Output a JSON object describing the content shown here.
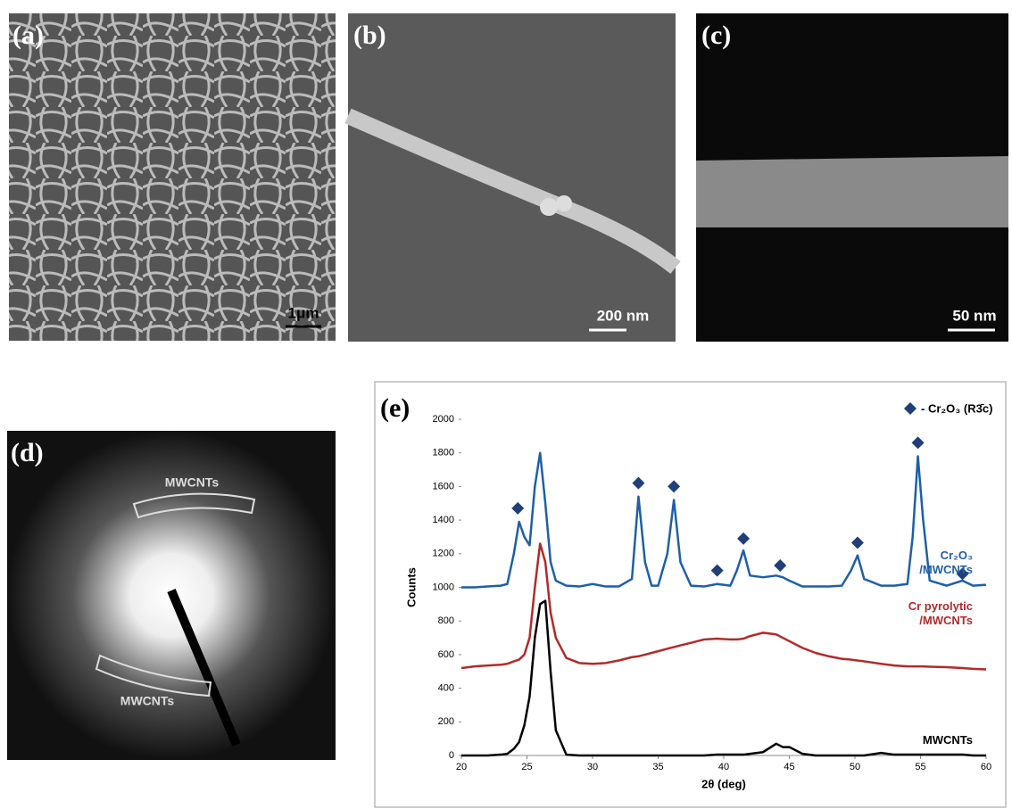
{
  "panels": [
    {
      "label": "(a)",
      "scale": "1μm"
    },
    {
      "label": "(b)",
      "scale": "200 nm"
    },
    {
      "label": "(c)",
      "scale": "50 nm"
    },
    {
      "label": "(d)",
      "rings": [
        "MWCNTs",
        "MWCNTs"
      ]
    }
  ],
  "chart_data": {
    "type": "line",
    "panel_label": "(e)",
    "x_label": "2θ (deg)",
    "y_label": "Counts",
    "x": [
      20,
      21,
      22,
      23,
      23.5,
      24,
      24.4,
      24.8,
      25.2,
      25.6,
      26,
      26.4,
      26.8,
      27.2,
      28,
      29,
      30,
      31,
      32,
      33,
      33.5,
      34,
      34.5,
      35,
      35.7,
      36.2,
      36.7,
      37.5,
      38.5,
      39.5,
      40.5,
      41,
      41.5,
      42,
      43,
      44,
      44.5,
      45,
      46,
      47,
      48,
      49,
      49.7,
      50.2,
      50.7,
      52,
      53,
      54,
      54.4,
      54.8,
      55.2,
      55.7,
      57,
      58.2,
      59,
      60
    ],
    "series": [
      {
        "name": "Cr₂O₃ /MWCNTs",
        "color": "#1f5fa8",
        "values": [
          1000,
          1000,
          1005,
          1010,
          1020,
          1200,
          1390,
          1300,
          1250,
          1600,
          1800,
          1500,
          1150,
          1040,
          1010,
          1005,
          1020,
          1005,
          1005,
          1050,
          1540,
          1150,
          1010,
          1010,
          1200,
          1520,
          1150,
          1010,
          1005,
          1020,
          1010,
          1100,
          1220,
          1070,
          1060,
          1070,
          1060,
          1040,
          1005,
          1005,
          1005,
          1010,
          1100,
          1190,
          1050,
          1010,
          1010,
          1020,
          1300,
          1780,
          1400,
          1040,
          1010,
          1040,
          1010,
          1015
        ]
      },
      {
        "name": "Cr pyrolytic /MWCNTs",
        "color": "#b22a2a",
        "values": [
          520,
          530,
          535,
          540,
          545,
          560,
          570,
          600,
          700,
          1000,
          1260,
          1150,
          850,
          700,
          580,
          550,
          545,
          550,
          565,
          585,
          590,
          600,
          610,
          620,
          635,
          645,
          655,
          670,
          690,
          695,
          690,
          690,
          695,
          710,
          730,
          720,
          700,
          680,
          640,
          610,
          590,
          575,
          570,
          565,
          560,
          545,
          535,
          530,
          530,
          530,
          530,
          528,
          525,
          520,
          515,
          512
        ]
      },
      {
        "name": "MWCNTs",
        "color": "#000000",
        "values": [
          0,
          0,
          0,
          5,
          10,
          40,
          80,
          180,
          350,
          700,
          900,
          920,
          500,
          150,
          5,
          0,
          0,
          0,
          0,
          0,
          0,
          0,
          0,
          0,
          0,
          0,
          0,
          0,
          0,
          5,
          5,
          5,
          5,
          10,
          20,
          70,
          50,
          50,
          10,
          0,
          0,
          0,
          0,
          0,
          0,
          15,
          5,
          5,
          5,
          5,
          5,
          5,
          5,
          5,
          0,
          0
        ]
      }
    ],
    "markers": {
      "name": "- Cr₂O₃ (R3̄c)",
      "color": "#1f3f7a",
      "x": [
        24.3,
        33.5,
        36.2,
        39.5,
        41.5,
        44.3,
        50.2,
        54.8,
        58.2
      ],
      "y": [
        1470,
        1620,
        1600,
        1100,
        1290,
        1130,
        1265,
        1860,
        1080
      ]
    },
    "xlim": [
      20,
      60
    ],
    "xticks": [
      20,
      25,
      30,
      35,
      40,
      45,
      50,
      55,
      60
    ],
    "ylim": [
      0,
      2000
    ],
    "yticks": [
      0,
      200,
      400,
      600,
      800,
      1000,
      1200,
      1400,
      1600,
      1800,
      2000
    ]
  }
}
